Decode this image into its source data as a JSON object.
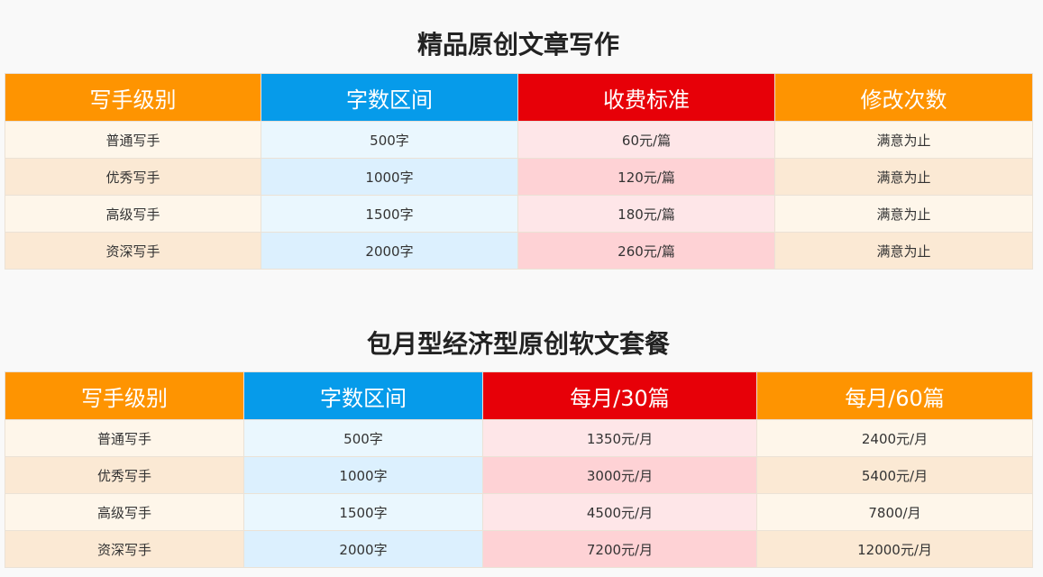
{
  "colors": {
    "header_orange": "#fe9401",
    "header_blue": "#069bea",
    "header_red": "#e70008"
  },
  "section1": {
    "title": "精品原创文章写作",
    "headers": [
      "写手级别",
      "字数区间",
      "收费标准",
      "修改次数"
    ],
    "rows": [
      [
        "普通写手",
        "500字",
        "60元/篇",
        "满意为止"
      ],
      [
        "优秀写手",
        "1000字",
        "120元/篇",
        "满意为止"
      ],
      [
        "高级写手",
        "1500字",
        "180元/篇",
        "满意为止"
      ],
      [
        "资深写手",
        "2000字",
        "260元/篇",
        "满意为止"
      ]
    ]
  },
  "section2": {
    "title": "包月型经济型原创软文套餐",
    "headers": [
      "写手级别",
      "字数区间",
      "每月/30篇",
      "每月/60篇"
    ],
    "rows": [
      [
        "普通写手",
        "500字",
        "1350元/月",
        "2400元/月"
      ],
      [
        "优秀写手",
        "1000字",
        "3000元/月",
        "5400元/月"
      ],
      [
        "高级写手",
        "1500字",
        "4500元/月",
        "7800/月"
      ],
      [
        "资深写手",
        "2000字",
        "7200元/月",
        "12000元/月"
      ]
    ]
  }
}
